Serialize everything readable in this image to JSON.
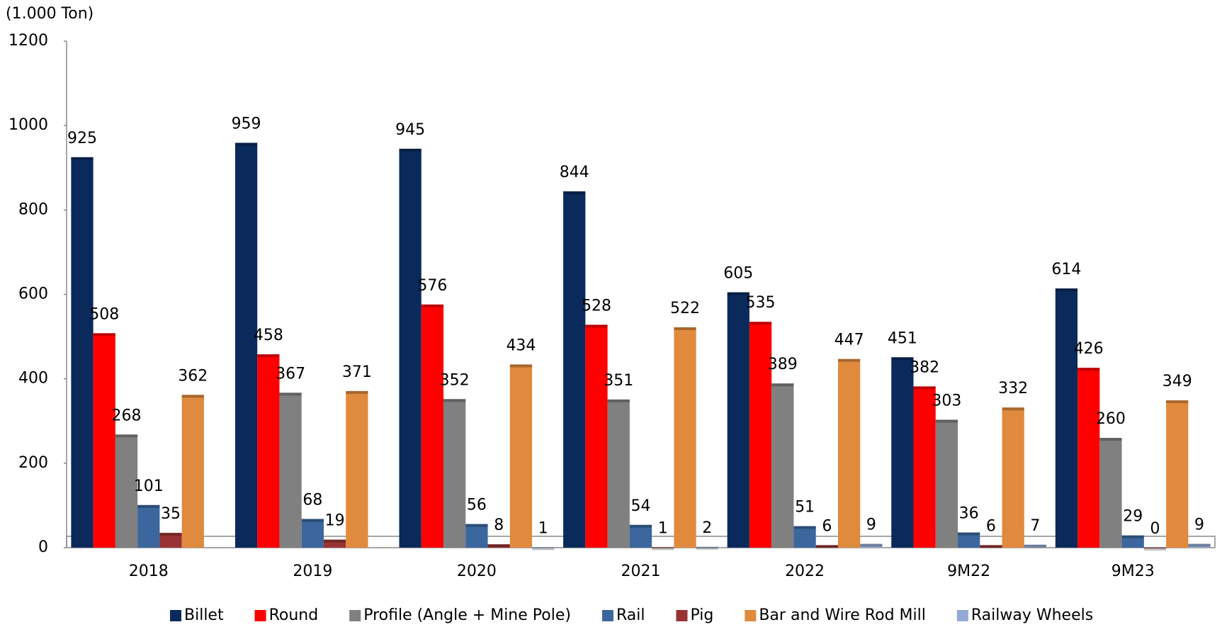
{
  "chart_data": {
    "type": "bar",
    "y_axis_label": "(1.000 Ton)",
    "categories": [
      "2018",
      "2019",
      "2020",
      "2021",
      "2022",
      "9M22",
      "9M23"
    ],
    "series": [
      {
        "name": "Billet",
        "color": "#0b2a5c",
        "values": [
          925,
          959,
          945,
          844,
          605,
          451,
          614
        ]
      },
      {
        "name": "Round",
        "color": "#ff0000",
        "values": [
          508,
          458,
          576,
          528,
          535,
          382,
          426
        ]
      },
      {
        "name": "Profile (Angle + Mine Pole)",
        "color": "#808080",
        "values": [
          268,
          367,
          352,
          351,
          389,
          303,
          260
        ]
      },
      {
        "name": "Rail",
        "color": "#3b679e",
        "values": [
          101,
          68,
          56,
          54,
          51,
          36,
          29
        ]
      },
      {
        "name": "Pig",
        "color": "#993333",
        "values": [
          35,
          19,
          8,
          1,
          6,
          6,
          0
        ]
      },
      {
        "name": "Bar and Wire Rod Mill",
        "color": "#e08a3e",
        "values": [
          362,
          371,
          434,
          522,
          447,
          332,
          349
        ]
      },
      {
        "name": "Railway Wheels",
        "color": "#94a9d4",
        "values": [
          null,
          null,
          1,
          2,
          9,
          7,
          9
        ]
      }
    ],
    "ylim": [
      0,
      1200
    ],
    "yticks": [
      0,
      200,
      400,
      600,
      800,
      1000,
      1200
    ],
    "grid": false,
    "legend": "bottom"
  }
}
